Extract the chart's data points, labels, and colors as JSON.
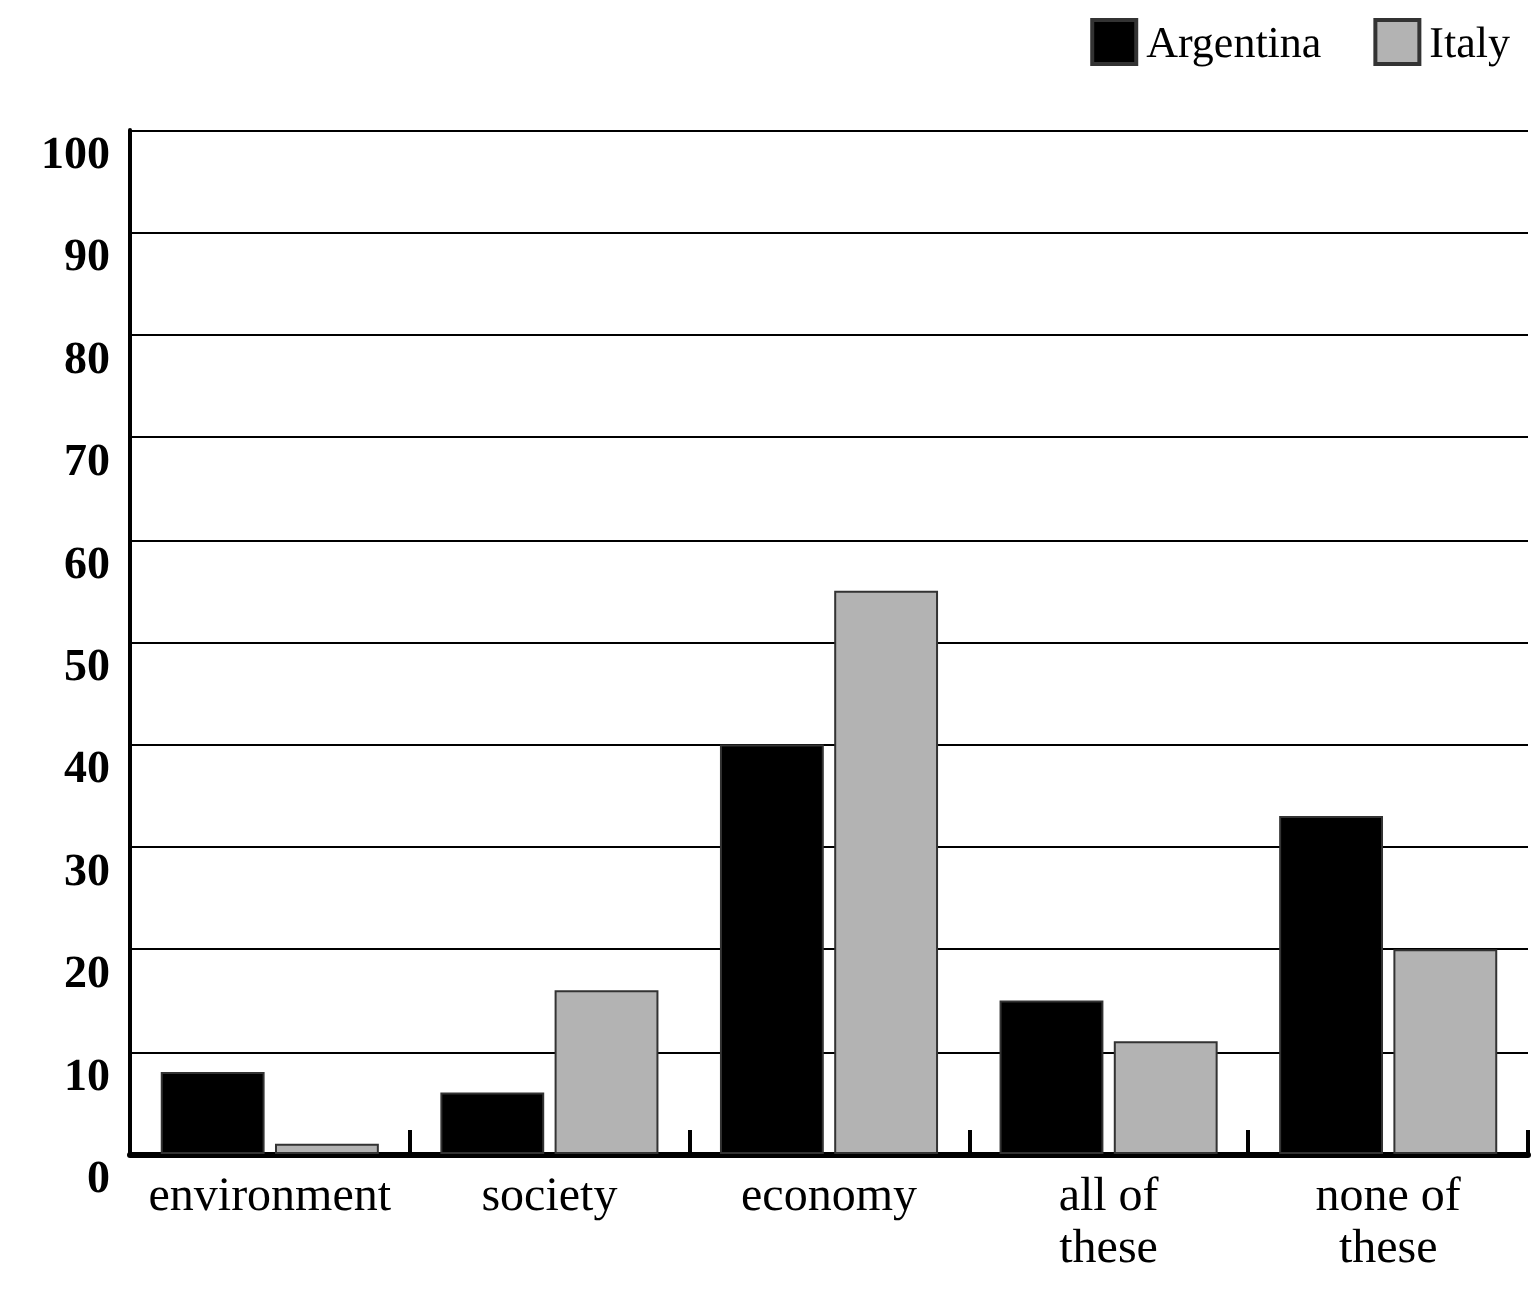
{
  "chart_data": {
    "type": "bar",
    "categories": [
      "environment",
      "society",
      "economy",
      "all of\nthese",
      "none of\nthese"
    ],
    "series": [
      {
        "name": "Argentina",
        "color": "#000000",
        "values": [
          8,
          6,
          40,
          15,
          33
        ]
      },
      {
        "name": "Italy",
        "color": "#b3b3b3",
        "values": [
          1,
          16,
          55,
          11,
          20
        ]
      }
    ],
    "ylim": [
      0,
      100
    ],
    "yticks": [
      0,
      10,
      20,
      30,
      40,
      50,
      60,
      70,
      80,
      90,
      100
    ],
    "grid": "y",
    "legend": "top right"
  }
}
